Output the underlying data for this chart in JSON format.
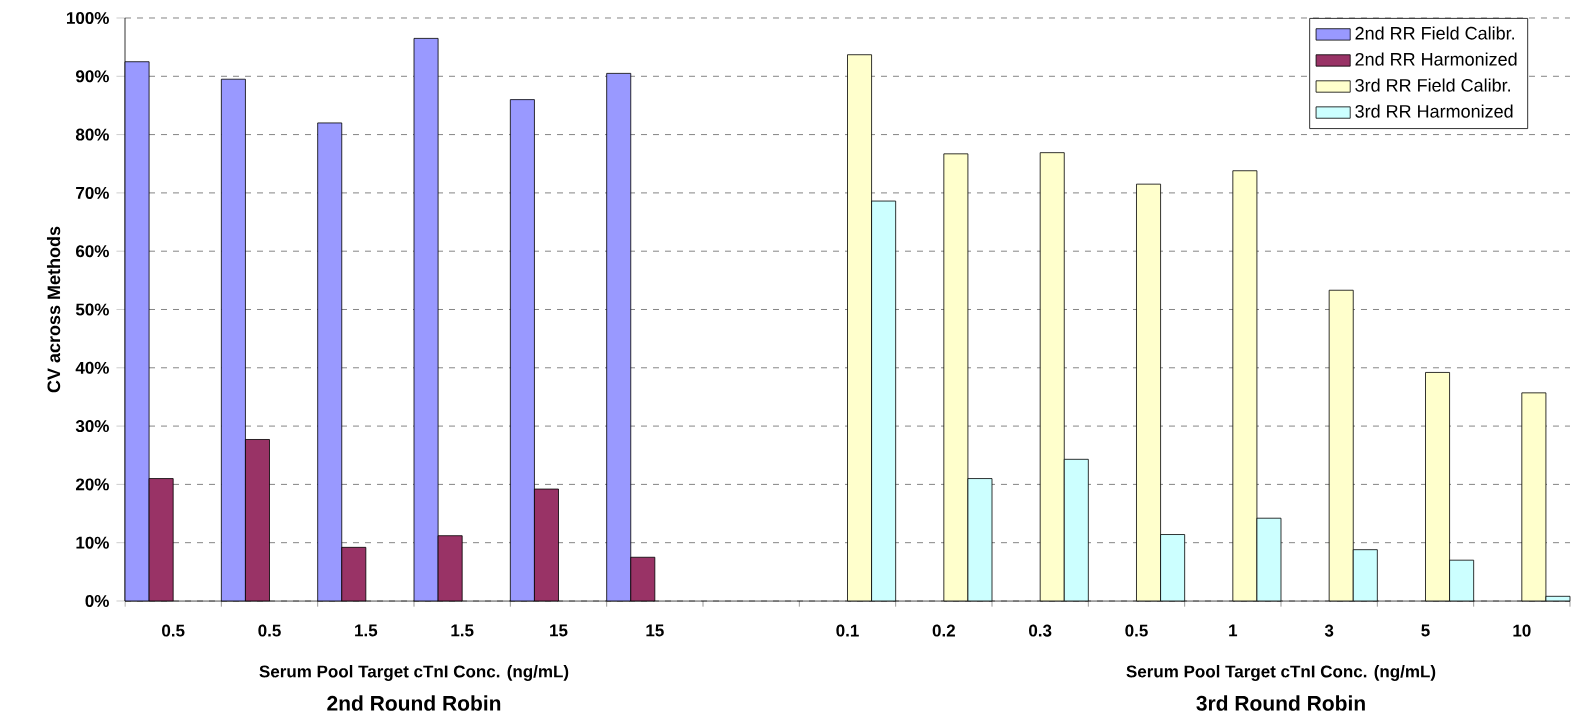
{
  "chart_data": {
    "type": "bar",
    "ylabel": "CV across Methods",
    "categories": [
      "0.5",
      "0.5",
      "1.5",
      "1.5",
      "15",
      "15",
      null,
      "0.1",
      "0.2",
      "0.3",
      "0.5",
      "1",
      "3",
      "5",
      "10"
    ],
    "series": [
      {
        "name": "2nd RR Field Calibr.",
        "color": "#9999ff",
        "values": [
          92.5,
          89.5,
          82,
          96.5,
          86,
          90.5,
          null,
          null,
          null,
          null,
          null,
          null,
          null,
          null,
          null
        ]
      },
      {
        "name": "2nd RR Harmonized",
        "color": "#993366",
        "values": [
          21,
          27.7,
          9.2,
          11.2,
          19.2,
          7.5,
          null,
          null,
          null,
          null,
          null,
          null,
          null,
          null,
          null
        ]
      },
      {
        "name": "3rd RR Field Calibr.",
        "color": "#ffffcc",
        "values": [
          null,
          null,
          null,
          null,
          null,
          null,
          null,
          93.7,
          76.7,
          76.9,
          71.5,
          73.8,
          53.3,
          39.2,
          35.7
        ]
      },
      {
        "name": "3rd RR Harmonized",
        "color": "#ccffff",
        "values": [
          null,
          null,
          null,
          null,
          null,
          null,
          null,
          68.6,
          21,
          24.3,
          11.4,
          14.2,
          8.8,
          7,
          0.8
        ]
      }
    ],
    "ylim": [
      0,
      100
    ],
    "yticks": [
      {
        "value": 0,
        "label": "0%"
      },
      {
        "value": 10,
        "label": "10%"
      },
      {
        "value": 20,
        "label": "20%"
      },
      {
        "value": 30,
        "label": "30%"
      },
      {
        "value": 40,
        "label": "40%"
      },
      {
        "value": 50,
        "label": "50%"
      },
      {
        "value": 60,
        "label": "60%"
      },
      {
        "value": 70,
        "label": "70%"
      },
      {
        "value": 80,
        "label": "80%"
      },
      {
        "value": 90,
        "label": "90%"
      },
      {
        "value": 100,
        "label": "100%"
      }
    ],
    "grid": "y",
    "legend": "top right",
    "annotations": [
      "Serum Pool Target cTnI Conc. (ng/mL)",
      "2nd Round Robin",
      "Serum Pool Target cTnI Conc. (ng/mL)",
      "3rd Round Robin"
    ]
  }
}
